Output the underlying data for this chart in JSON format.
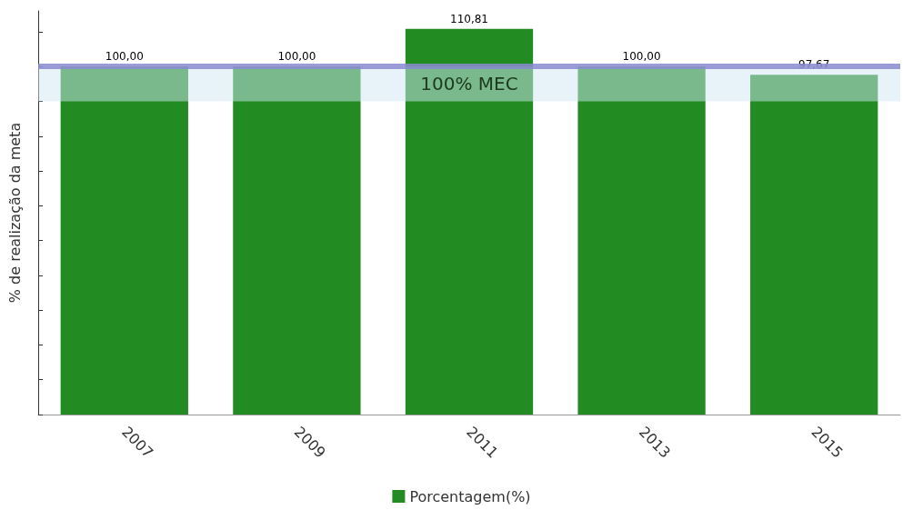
{
  "chart_data": {
    "type": "bar",
    "ylabel": "% de realização da meta",
    "categories": [
      "2007",
      "2009",
      "2011",
      "2013",
      "2015"
    ],
    "series": [
      {
        "name": "Porcentagem(%)",
        "color": "#228b22",
        "values": [
          100,
          100,
          110.81,
          100,
          97.67
        ],
        "value_labels": [
          "100,00",
          "100,00",
          "110,81",
          "100,00",
          "97,67"
        ]
      }
    ],
    "ylim": [
      0,
      116
    ],
    "yticks": [
      {
        "value": 0,
        "label": null
      },
      {
        "value": 10,
        "label": null
      },
      {
        "value": 20,
        "label": null
      },
      {
        "value": 30,
        "label": null
      },
      {
        "value": 40,
        "label": null
      },
      {
        "value": 50,
        "label": null
      },
      {
        "value": 60,
        "label": null
      },
      {
        "value": 70,
        "label": null
      },
      {
        "value": 80,
        "label": null
      },
      {
        "value": 90,
        "label": null
      },
      {
        "value": 100,
        "label": null
      },
      {
        "value": 110,
        "label": null
      }
    ],
    "tick_labels": "x",
    "ref_lines": [
      {
        "axis": "y",
        "value": 100,
        "color": "#8a8ad0"
      }
    ],
    "bands": [
      {
        "axis": "y",
        "from": 90,
        "to": 100,
        "label": "100% MEC",
        "color": "#cfe7f3"
      }
    ],
    "legend": "bottom",
    "grid": false
  }
}
